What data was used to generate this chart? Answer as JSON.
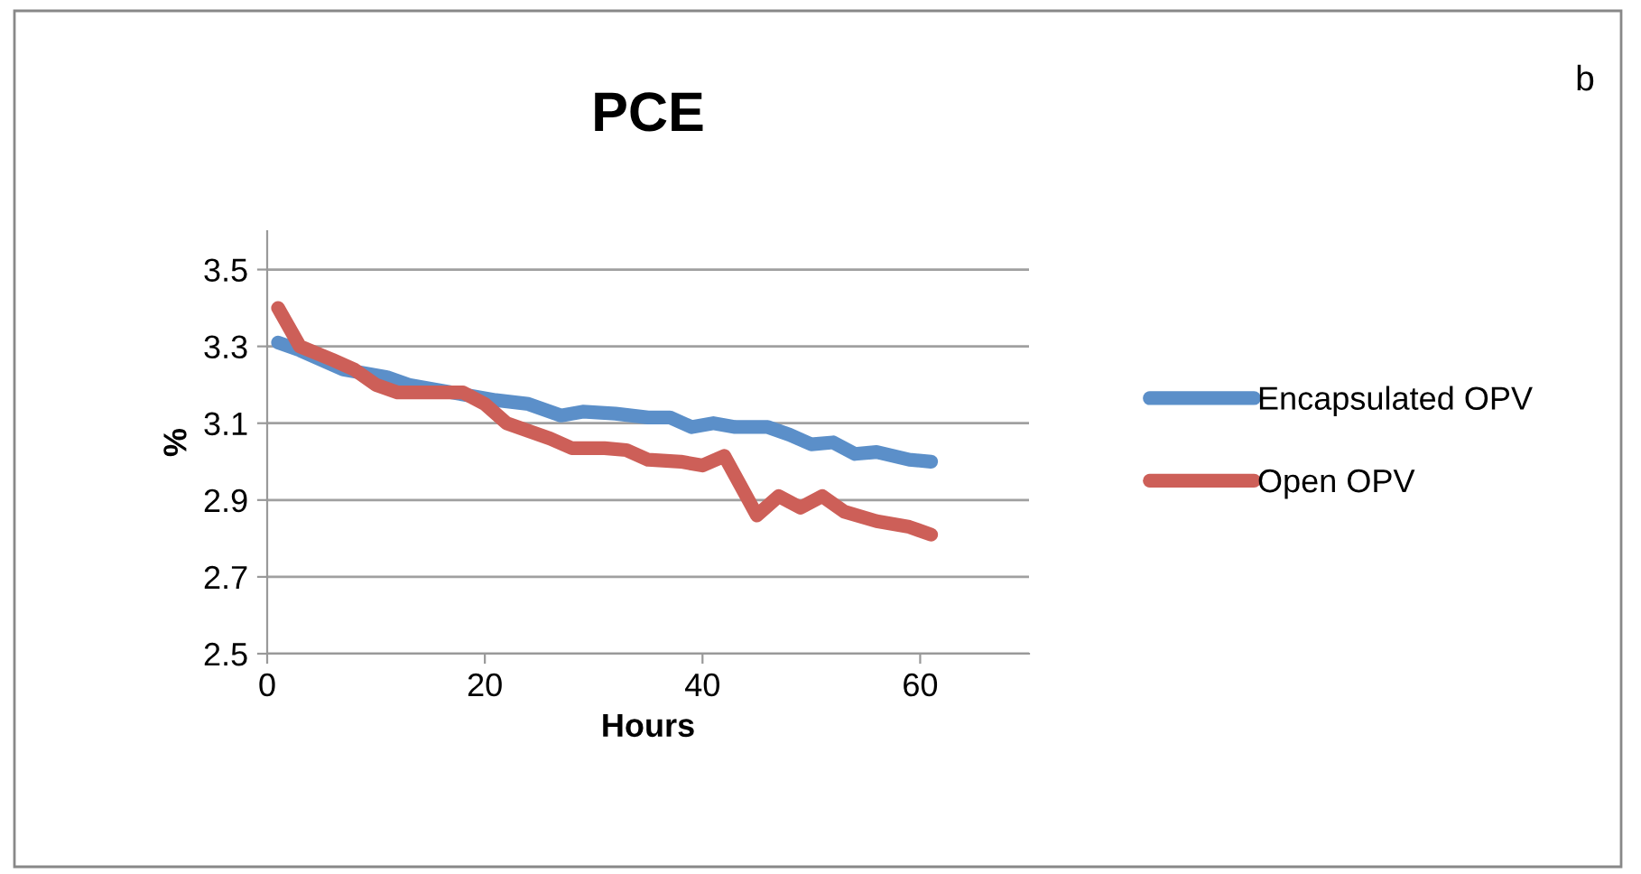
{
  "chart_data": {
    "type": "line",
    "title": "PCE",
    "xlabel": "Hours",
    "ylabel": "%",
    "annotations": [
      "b"
    ],
    "xlim": [
      0,
      70
    ],
    "xticks": [
      0,
      20,
      40,
      60
    ],
    "ylim": [
      2.5,
      3.6
    ],
    "yticks": [
      2.5,
      2.7,
      2.9,
      3.1,
      3.3,
      3.5
    ],
    "grid": "y",
    "legend": "right",
    "marker": "none",
    "line_style": "solid",
    "series": [
      {
        "name": "Encapsulated OPV",
        "color": "#5b8fc9",
        "x": [
          1,
          3,
          7,
          11,
          13,
          17,
          21,
          24,
          27,
          29,
          32,
          35,
          37,
          39,
          41,
          43,
          46,
          48,
          50,
          52,
          54,
          56,
          59,
          61
        ],
        "values": [
          3.31,
          3.29,
          3.24,
          3.22,
          3.2,
          3.18,
          3.16,
          3.15,
          3.12,
          3.13,
          3.125,
          3.115,
          3.115,
          3.09,
          3.1,
          3.09,
          3.09,
          3.07,
          3.045,
          3.05,
          3.02,
          3.025,
          3.005,
          3.0
        ]
      },
      {
        "name": "Open OPV",
        "color": "#cd5f58",
        "x": [
          1,
          3,
          6,
          8,
          10,
          12,
          15,
          18,
          20,
          22,
          24,
          26,
          28,
          31,
          33,
          35,
          38,
          40,
          42,
          45,
          47,
          49,
          51,
          53,
          56,
          59,
          61
        ],
        "values": [
          3.4,
          3.3,
          3.265,
          3.24,
          3.2,
          3.18,
          3.18,
          3.18,
          3.15,
          3.1,
          3.08,
          3.06,
          3.035,
          3.035,
          3.03,
          3.005,
          3.0,
          2.99,
          3.015,
          2.86,
          2.91,
          2.88,
          2.91,
          2.87,
          2.845,
          2.83,
          2.81
        ]
      }
    ]
  }
}
